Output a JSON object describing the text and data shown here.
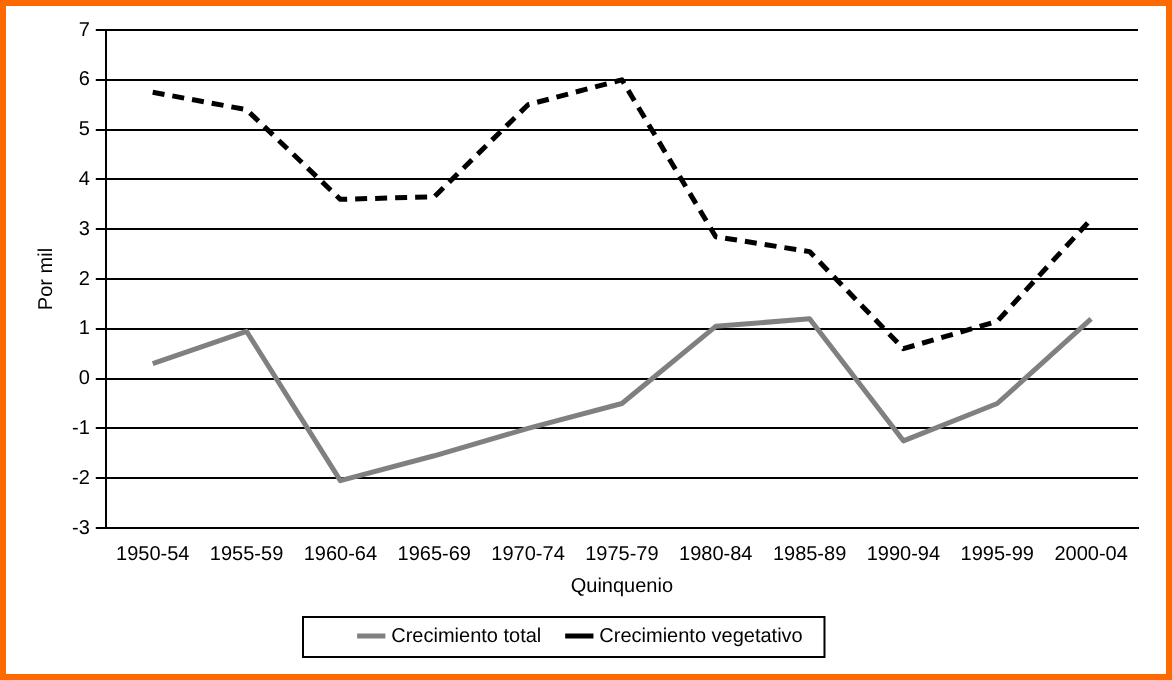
{
  "chart_data": {
    "type": "line",
    "xlabel": "Quinquenio",
    "ylabel": "Por mil",
    "categories": [
      "1950-54",
      "1955-59",
      "1960-64",
      "1965-69",
      "1970-74",
      "1975-79",
      "1980-84",
      "1985-89",
      "1990-94",
      "1995-99",
      "2000-04"
    ],
    "series": [
      {
        "name": "Crecimiento total",
        "color": "#808080",
        "line_style": "solid",
        "values": [
          0.3,
          0.95,
          -2.05,
          -1.55,
          -1.0,
          -0.5,
          1.05,
          1.2,
          -1.25,
          -0.5,
          1.2
        ]
      },
      {
        "name": "Crecimiento vegetativo",
        "color": "#000000",
        "line_style": "dashed",
        "values": [
          5.75,
          5.4,
          3.6,
          3.65,
          5.5,
          6.0,
          2.85,
          2.55,
          0.6,
          1.15,
          3.2
        ]
      }
    ],
    "ylim": [
      -3,
      7
    ],
    "yticks": [
      -3,
      -2,
      -1,
      0,
      1,
      2,
      3,
      4,
      5,
      6,
      7
    ],
    "grid": "y",
    "legend": "bottom",
    "marker": "none"
  }
}
